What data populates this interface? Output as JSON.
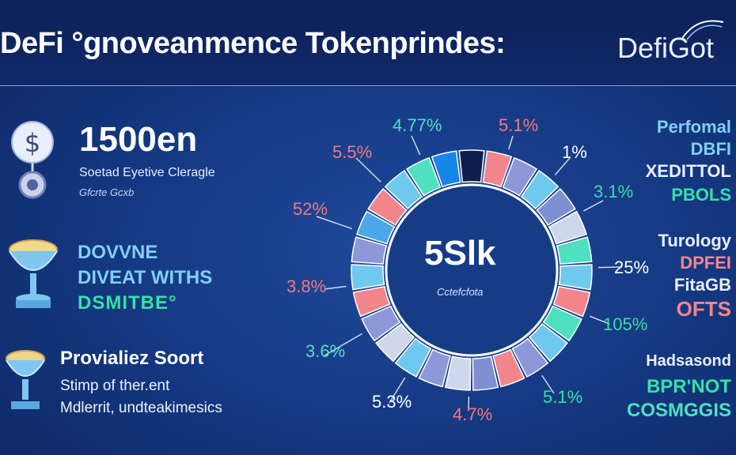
{
  "header": {
    "title": "DeFi °gnoveanmence Tokenprindes:",
    "logo": "DefiGot"
  },
  "left": {
    "stat_value": "1500en",
    "stat_sub": "Soetad Eyetive Cleragle",
    "stat_note": "Gfcrte Gcxb",
    "blue_line_1": "DOVVNE",
    "blue_line_2": "DIVEAT WITHS",
    "green_line": "DSMITBE°",
    "white_head": "Provialiez Soort",
    "white_line_1": "Stimp of ther.ent",
    "white_line_2": "Mdlerrit, undteakimesics"
  },
  "right": {
    "block1": [
      "Perfomal",
      "DBFI",
      "XEDITTOL",
      "PBOLS"
    ],
    "block2": [
      "Turology",
      "DPFEI",
      "FitaGB",
      "OFTS"
    ],
    "block3": [
      "Hadsasond",
      "BPR'NOT",
      "COSMGGIS"
    ]
  },
  "colors": {
    "teal": "#4fe0c0",
    "blue": "#4aa8e8",
    "green": "#35e0a6",
    "salmon": "#f07a82",
    "pink": "#f2868c",
    "light_blue": "#6fc9ee",
    "lavender": "#8c98d8",
    "grey": "#cfd7ea"
  },
  "chart_data": {
    "type": "pie",
    "style": "donut",
    "center_label": "5Slk",
    "center_sub": "Cctefcfota",
    "labels": [
      {
        "text": "4.77%",
        "color": "#4fe0c0"
      },
      {
        "text": "5.1%",
        "color": "#f07a82"
      },
      {
        "text": "1%",
        "color": "#ffffff"
      },
      {
        "text": "3.1%",
        "color": "#35e0a6"
      },
      {
        "text": "25%",
        "color": "#ffffff"
      },
      {
        "text": "105%",
        "color": "#35e0a6"
      },
      {
        "text": "5.1%",
        "color": "#35e0a6"
      },
      {
        "text": "4.7%",
        "color": "#f07a82"
      },
      {
        "text": "5.3%",
        "color": "#ffffff"
      },
      {
        "text": "3.6%",
        "color": "#4fe0c0"
      },
      {
        "text": "3.8%",
        "color": "#f07a82"
      },
      {
        "text": "52%",
        "color": "#f07a82"
      },
      {
        "text": "5.5%",
        "color": "#f07a82"
      }
    ],
    "segments": [
      "#0f1f4d",
      "#f2868c",
      "#8c98d8",
      "#6fc9ee",
      "#7e8fd2",
      "#cfd7ea",
      "#4fe0c0",
      "#6fc9ee",
      "#f2868c",
      "#4fe0c0",
      "#6fc9ee",
      "#8c98d8",
      "#f2868c",
      "#7e8fd2",
      "#cfd7ea",
      "#8c98d8",
      "#6fc9ee",
      "#cfd7ea",
      "#8c98d8",
      "#f2868c",
      "#6fc9ee",
      "#8c98d8",
      "#4aa8e8",
      "#f2868c",
      "#6fc9ee",
      "#4fe0c0",
      "#1686e8"
    ]
  }
}
